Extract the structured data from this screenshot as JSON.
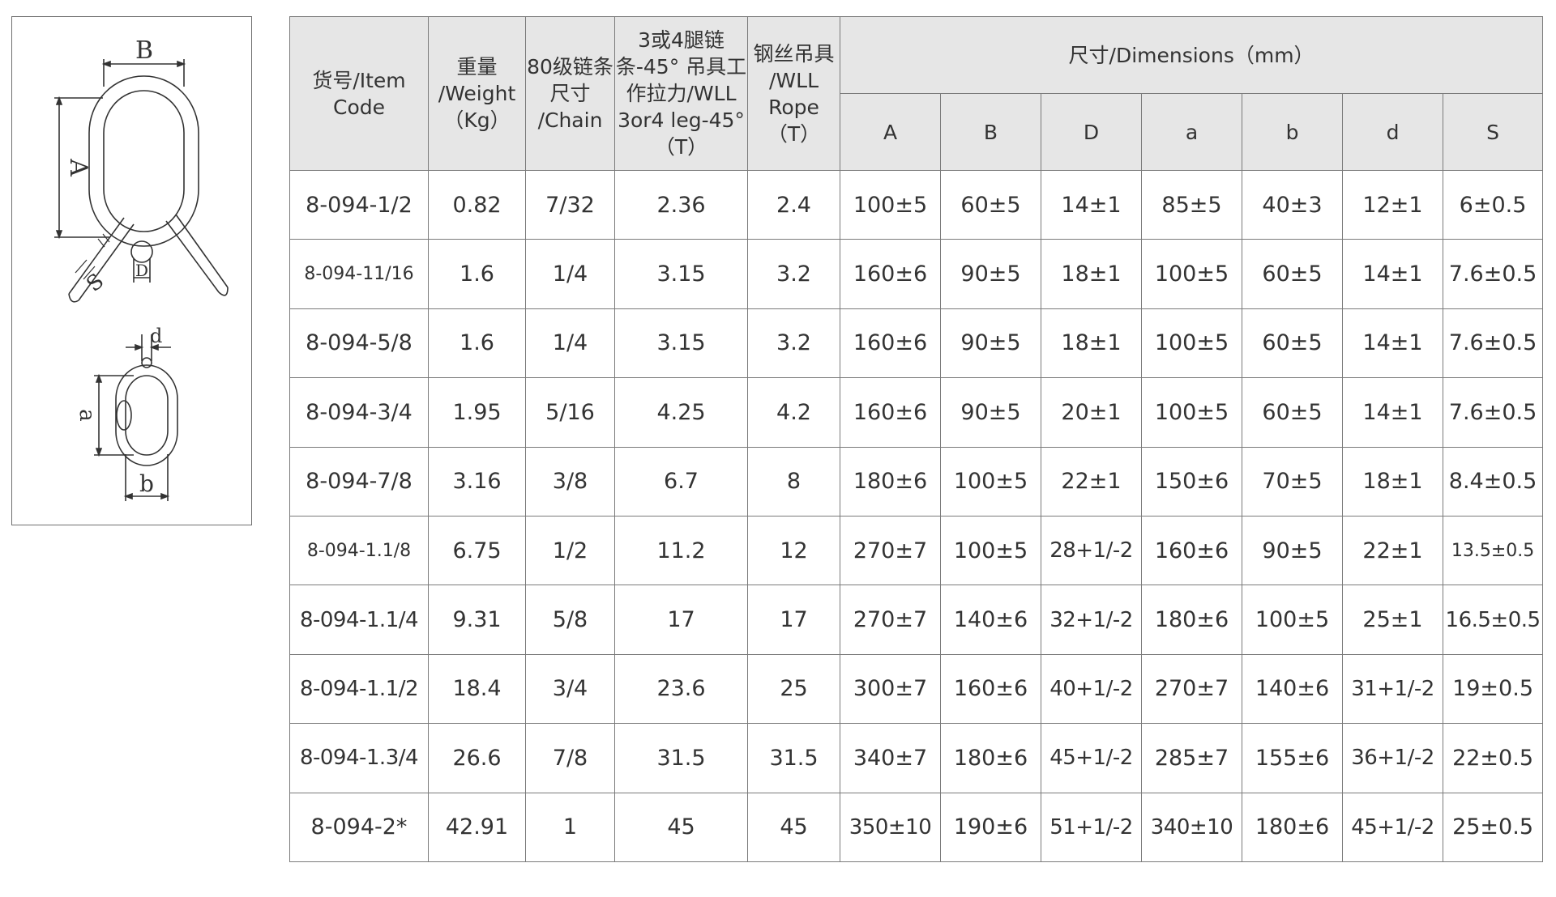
{
  "diagram": {
    "labels": {
      "B": "B",
      "A": "A",
      "D": "D",
      "S": "S",
      "d": "d",
      "a": "a",
      "b": "b"
    },
    "line_color": "#333333"
  },
  "table": {
    "headers": {
      "item_code": "货号/Item Code",
      "weight": "重量 /Weight （Kg）",
      "chain": "80级链条尺寸 /Chain",
      "wll_chain": "3或4腿链条-45° 吊具工作拉力/WLL 3or4 leg-45°（T）",
      "wll_rope": "钢丝吊具 /WLL Rope （T）",
      "dimensions": "尺寸/Dimensions（mm）",
      "dim_columns": [
        "A",
        "B",
        "D",
        "a",
        "b",
        "d",
        "S"
      ]
    },
    "rows": [
      {
        "code": "8-094-1/2",
        "weight": "0.82",
        "chain": "7/32",
        "wll_chain": "2.36",
        "wll_rope": "2.4",
        "A": "100±5",
        "B": "60±5",
        "D": "14±1",
        "a": "85±5",
        "b": "40±3",
        "d": "12±1",
        "S": "6±0.5"
      },
      {
        "code": "8-094-11/16",
        "weight": "1.6",
        "chain": "1/4",
        "wll_chain": "3.15",
        "wll_rope": "3.2",
        "A": "160±6",
        "B": "90±5",
        "D": "18±1",
        "a": "100±5",
        "b": "60±5",
        "d": "14±1",
        "S": "7.6±0.5"
      },
      {
        "code": "8-094-5/8",
        "weight": "1.6",
        "chain": "1/4",
        "wll_chain": "3.15",
        "wll_rope": "3.2",
        "A": "160±6",
        "B": "90±5",
        "D": "18±1",
        "a": "100±5",
        "b": "60±5",
        "d": "14±1",
        "S": "7.6±0.5"
      },
      {
        "code": "8-094-3/4",
        "weight": "1.95",
        "chain": "5/16",
        "wll_chain": "4.25",
        "wll_rope": "4.2",
        "A": "160±6",
        "B": "90±5",
        "D": "20±1",
        "a": "100±5",
        "b": "60±5",
        "d": "14±1",
        "S": "7.6±0.5"
      },
      {
        "code": "8-094-7/8",
        "weight": "3.16",
        "chain": "3/8",
        "wll_chain": "6.7",
        "wll_rope": "8",
        "A": "180±6",
        "B": "100±5",
        "D": "22±1",
        "a": "150±6",
        "b": "70±5",
        "d": "18±1",
        "S": "8.4±0.5"
      },
      {
        "code": "8-094-1.1/8",
        "weight": "6.75",
        "chain": "1/2",
        "wll_chain": "11.2",
        "wll_rope": "12",
        "A": "270±7",
        "B": "100±5",
        "D": "28+1/-2",
        "a": "160±6",
        "b": "90±5",
        "d": "22±1",
        "S": "13.5±0.5"
      },
      {
        "code": "8-094-1.1/4",
        "weight": "9.31",
        "chain": "5/8",
        "wll_chain": "17",
        "wll_rope": "17",
        "A": "270±7",
        "B": "140±6",
        "D": "32+1/-2",
        "a": "180±6",
        "b": "100±5",
        "d": "25±1",
        "S": "16.5±0.5"
      },
      {
        "code": "8-094-1.1/2",
        "weight": "18.4",
        "chain": "3/4",
        "wll_chain": "23.6",
        "wll_rope": "25",
        "A": "300±7",
        "B": "160±6",
        "D": "40+1/-2",
        "a": "270±7",
        "b": "140±6",
        "d": "31+1/-2",
        "S": "19±0.5"
      },
      {
        "code": "8-094-1.3/4",
        "weight": "26.6",
        "chain": "7/8",
        "wll_chain": "31.5",
        "wll_rope": "31.5",
        "A": "340±7",
        "B": "180±6",
        "D": "45+1/-2",
        "a": "285±7",
        "b": "155±6",
        "d": "36+1/-2",
        "S": "22±0.5"
      },
      {
        "code": "8-094-2*",
        "weight": "42.91",
        "chain": "1",
        "wll_chain": "45",
        "wll_rope": "45",
        "A": "350±10",
        "B": "190±6",
        "D": "51+1/-2",
        "a": "340±10",
        "b": "180±6",
        "d": "45+1/-2",
        "S": "25±0.5"
      }
    ]
  }
}
